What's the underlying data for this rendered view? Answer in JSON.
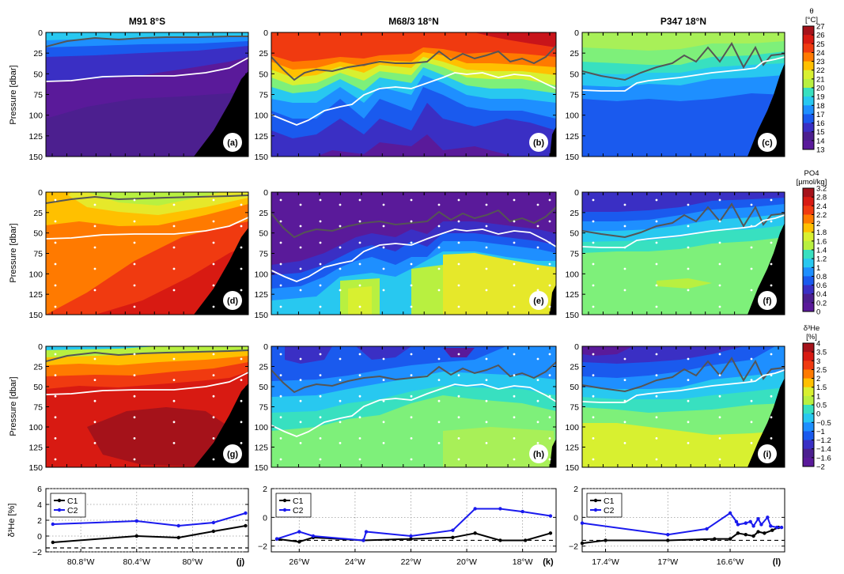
{
  "columns": [
    {
      "title": "M91 8°S"
    },
    {
      "title": "M68/3 18°N"
    },
    {
      "title": "P347 18°N"
    }
  ],
  "colorbars": [
    {
      "title_lines": [
        "θ",
        "[°C]"
      ],
      "ticks": [
        "27",
        "26",
        "25",
        "24",
        "23",
        "22",
        "21",
        "20",
        "19",
        "18",
        "17",
        "16",
        "15",
        "14",
        "13"
      ],
      "vmin": 13,
      "vmax": 27
    },
    {
      "title_lines": [
        "PO4",
        "[µmol/kg]"
      ],
      "ticks": [
        "3.2",
        "2.8",
        "2.4",
        "2.2",
        "2",
        "1.8",
        "1.6",
        "1.4",
        "1.2",
        "1",
        "0.8",
        "0.6",
        "0.4",
        "0.2",
        "0"
      ],
      "vmin": 0,
      "vmax": 3.2
    },
    {
      "title_lines": [
        "δ³He",
        "[%]"
      ],
      "ticks": [
        "4",
        "3.5",
        "3",
        "2.5",
        "2",
        "1.5",
        "1",
        "0.5",
        "0",
        "−0.5",
        "−1",
        "−1.2",
        "−1.4",
        "−1.6",
        "−2"
      ],
      "vmin": -2,
      "vmax": 4
    }
  ],
  "section_axes": {
    "ylabel": "Pressure [dbar]",
    "yticks": [
      "0",
      "25",
      "50",
      "75",
      "100",
      "125",
      "150"
    ],
    "ylim": [
      0,
      150
    ]
  },
  "panel_letters": [
    "(a)",
    "(b)",
    "(c)",
    "(d)",
    "(e)",
    "(f)",
    "(g)",
    "(h)",
    "(i)",
    "(j)",
    "(k)",
    "(l)"
  ],
  "chart_data": [
    {
      "type": "line",
      "panel": "j",
      "ylabel": "δ³He [%]",
      "ylim": [
        -2,
        6
      ],
      "yticks": [
        "−2",
        "0",
        "2",
        "4",
        "6"
      ],
      "xlim": [
        -81.05,
        -79.6
      ],
      "xtick_values": [
        -80.8,
        -80.4,
        -80.0
      ],
      "xtick_labels": [
        "80.8°W",
        "80.4°W",
        "80°W"
      ],
      "dashed_reference": -1.5,
      "legend_position": "top-left",
      "series": [
        {
          "name": "C1",
          "color": "#000000",
          "x": [
            -81.0,
            -80.4,
            -80.1,
            -79.85,
            -79.62
          ],
          "y": [
            -0.8,
            0.0,
            -0.2,
            0.6,
            1.3
          ]
        },
        {
          "name": "C2",
          "color": "#1a1aee",
          "x": [
            -81.0,
            -80.4,
            -80.1,
            -79.85,
            -79.62
          ],
          "y": [
            1.5,
            1.9,
            1.3,
            1.7,
            2.9
          ]
        }
      ]
    },
    {
      "type": "line",
      "panel": "k",
      "ylabel": "",
      "ylim": [
        -2.4,
        2
      ],
      "yticks": [
        "−2",
        "0",
        "2"
      ],
      "xlim": [
        -27.0,
        -16.8
      ],
      "xtick_values": [
        -26,
        -24,
        -22,
        -20,
        -18
      ],
      "xtick_labels": [
        "26°W",
        "24°W",
        "22°W",
        "20°W",
        "18°W"
      ],
      "dashed_reference": -1.6,
      "legend_position": "top-left",
      "series": [
        {
          "name": "C1",
          "color": "#000000",
          "x": [
            -26.8,
            -26.0,
            -25.5,
            -23.7,
            -22.0,
            -20.5,
            -19.7,
            -18.8,
            -17.9,
            -17.0
          ],
          "y": [
            -1.5,
            -1.7,
            -1.4,
            -1.6,
            -1.5,
            -1.4,
            -1.1,
            -1.6,
            -1.6,
            -1.1
          ]
        },
        {
          "name": "C2",
          "color": "#1a1aee",
          "x": [
            -26.8,
            -26.0,
            -25.5,
            -23.7,
            -23.6,
            -22.0,
            -20.5,
            -19.7,
            -18.8,
            -18.0,
            -17.0
          ],
          "y": [
            -1.5,
            -1.0,
            -1.3,
            -1.6,
            -1.0,
            -1.3,
            -0.9,
            0.6,
            0.6,
            0.4,
            0.1
          ]
        }
      ]
    },
    {
      "type": "line",
      "panel": "l",
      "ylabel": "",
      "ylim": [
        -2.4,
        2
      ],
      "yticks": [
        "−2",
        "0",
        "2"
      ],
      "xlim": [
        -17.55,
        -16.25
      ],
      "xtick_values": [
        -17.4,
        -17.0,
        -16.6
      ],
      "xtick_labels": [
        "17.4°W",
        "17°W",
        "16.6°W"
      ],
      "dashed_reference": -1.6,
      "legend_position": "top-left",
      "series": [
        {
          "name": "C1",
          "color": "#000000",
          "x": [
            -17.55,
            -17.4,
            -17.0,
            -16.7,
            -16.6,
            -16.55,
            -16.5,
            -16.45,
            -16.42,
            -16.38,
            -16.33,
            -16.29
          ],
          "y": [
            -1.8,
            -1.6,
            -1.6,
            -1.5,
            -1.5,
            -1.1,
            -1.2,
            -1.3,
            -1.0,
            -1.1,
            -0.9,
            -0.7
          ]
        },
        {
          "name": "C2",
          "color": "#1a1aee",
          "x": [
            -17.55,
            -17.0,
            -16.75,
            -16.6,
            -16.56,
            -16.55,
            -16.5,
            -16.47,
            -16.45,
            -16.42,
            -16.4,
            -16.36,
            -16.34,
            -16.3,
            -16.27
          ],
          "y": [
            -0.4,
            -1.2,
            -0.8,
            0.3,
            -0.3,
            -0.5,
            -0.4,
            -0.3,
            -0.6,
            -0.1,
            -0.5,
            0.0,
            -0.6,
            -0.7,
            -0.7
          ]
        }
      ]
    }
  ]
}
